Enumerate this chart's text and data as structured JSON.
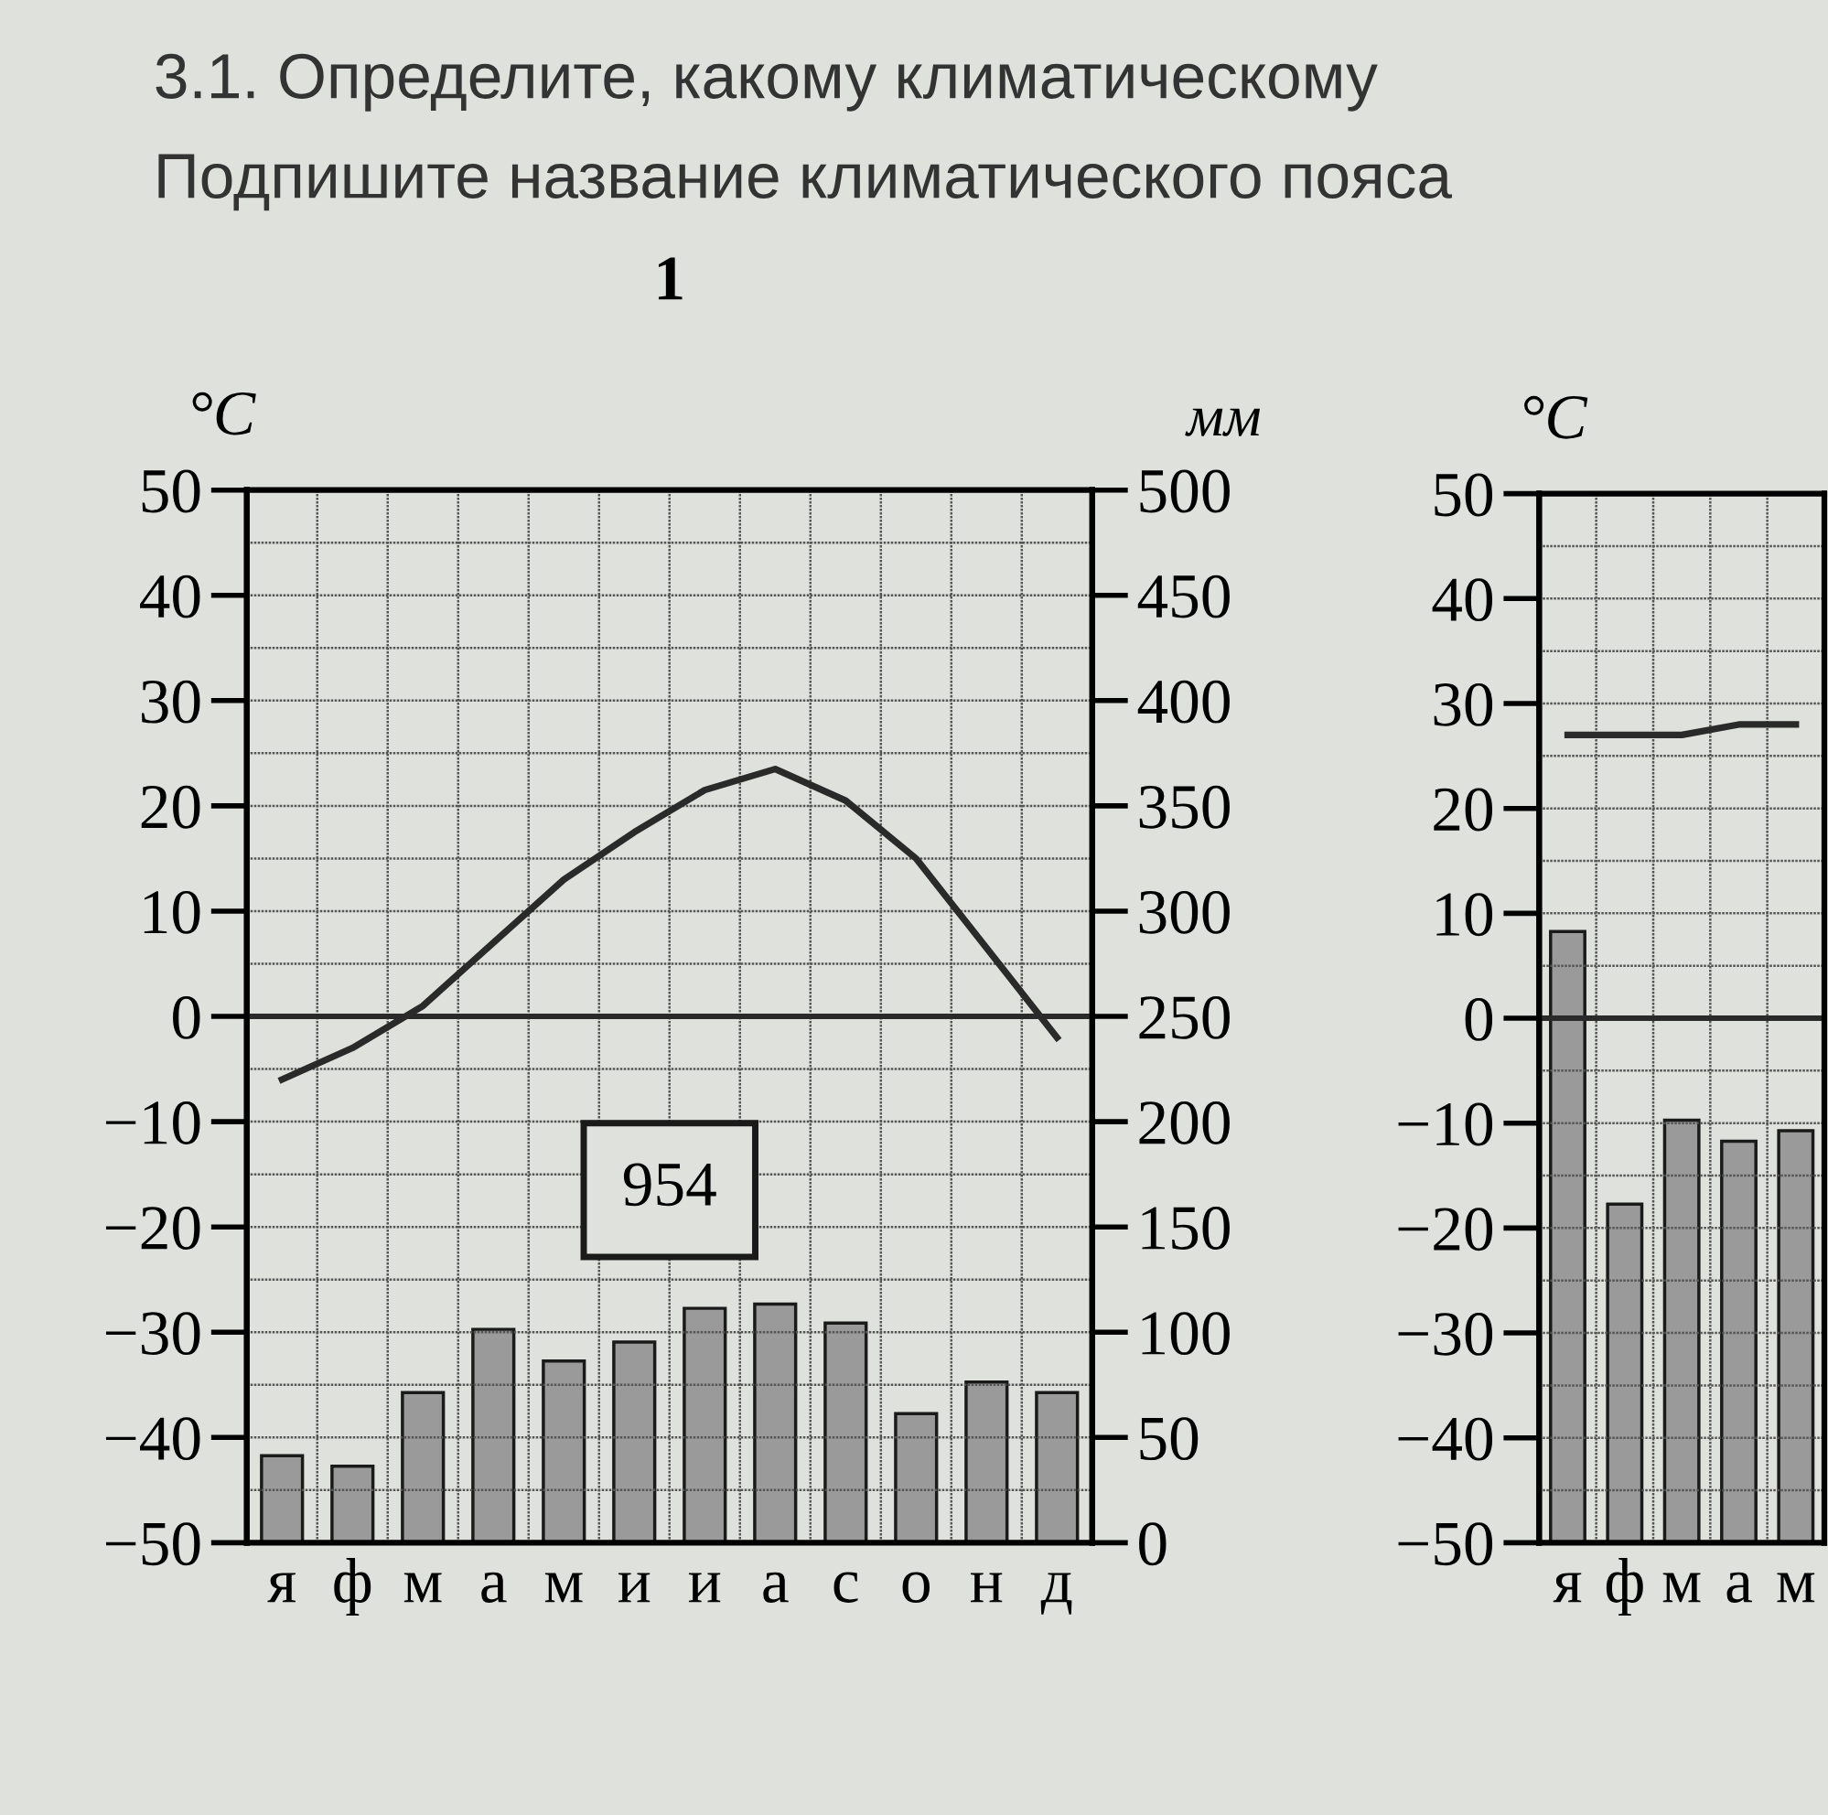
{
  "chart_data": [
    {
      "type": "bar",
      "title": "1",
      "ylabel": "°C",
      "y2label": "мм",
      "annotations": [
        "3.1. Определите, какому климатическому",
        "Подпишите название климатического пояса",
        "954"
      ],
      "categories": [
        "я",
        "ф",
        "м",
        "а",
        "м",
        "и",
        "и",
        "а",
        "с",
        "о",
        "н",
        "д"
      ],
      "series": [
        {
          "axis": "y2",
          "color": "#9a9a9a",
          "values": [
            40,
            35,
            70,
            100,
            85,
            94,
            110,
            112,
            103,
            60,
            75,
            70
          ]
        },
        {
          "type": "line",
          "color": "#2a2a2a",
          "values": [
            -6,
            -3,
            1,
            7,
            13,
            17.5,
            21.5,
            23.5,
            20.5,
            15,
            6.5,
            -2
          ]
        }
      ],
      "ylim": [
        -50,
        50
      ],
      "yticks": [
        -50,
        -40,
        -30,
        -20,
        -10,
        0,
        10,
        20,
        30,
        40,
        50
      ],
      "y2lim": [
        0,
        500
      ],
      "y2ticks": [
        0,
        50,
        100,
        150,
        200,
        250,
        300,
        350,
        400,
        450,
        500
      ],
      "ref_lines": [
        {
          "axis": "y",
          "value": 0,
          "color": "#2a2a2a"
        }
      ],
      "grid": true,
      "legend": false,
      "marker": "none",
      "line_style": "solid"
    },
    {
      "type": "bar",
      "ylabel": "°C",
      "categories": [
        "я",
        "ф",
        "м",
        "а",
        "м"
      ],
      "series": [
        {
          "axis": "y2",
          "color": "#9a9a9a",
          "values": [
            290,
            160,
            200,
            190,
            195
          ]
        },
        {
          "type": "line",
          "color": "#2a2a2a",
          "values": [
            27,
            27,
            27,
            28,
            28
          ]
        }
      ],
      "ylim": [
        -50,
        50
      ],
      "yticks": [
        -50,
        -40,
        -30,
        -20,
        -10,
        0,
        10,
        20,
        30,
        40,
        50
      ],
      "y2lim": [
        0,
        500
      ],
      "ref_lines": [
        {
          "axis": "y",
          "value": 0,
          "color": "#2a2a2a"
        }
      ],
      "grid": true,
      "legend": false,
      "marker": "none",
      "line_style": "solid"
    }
  ]
}
